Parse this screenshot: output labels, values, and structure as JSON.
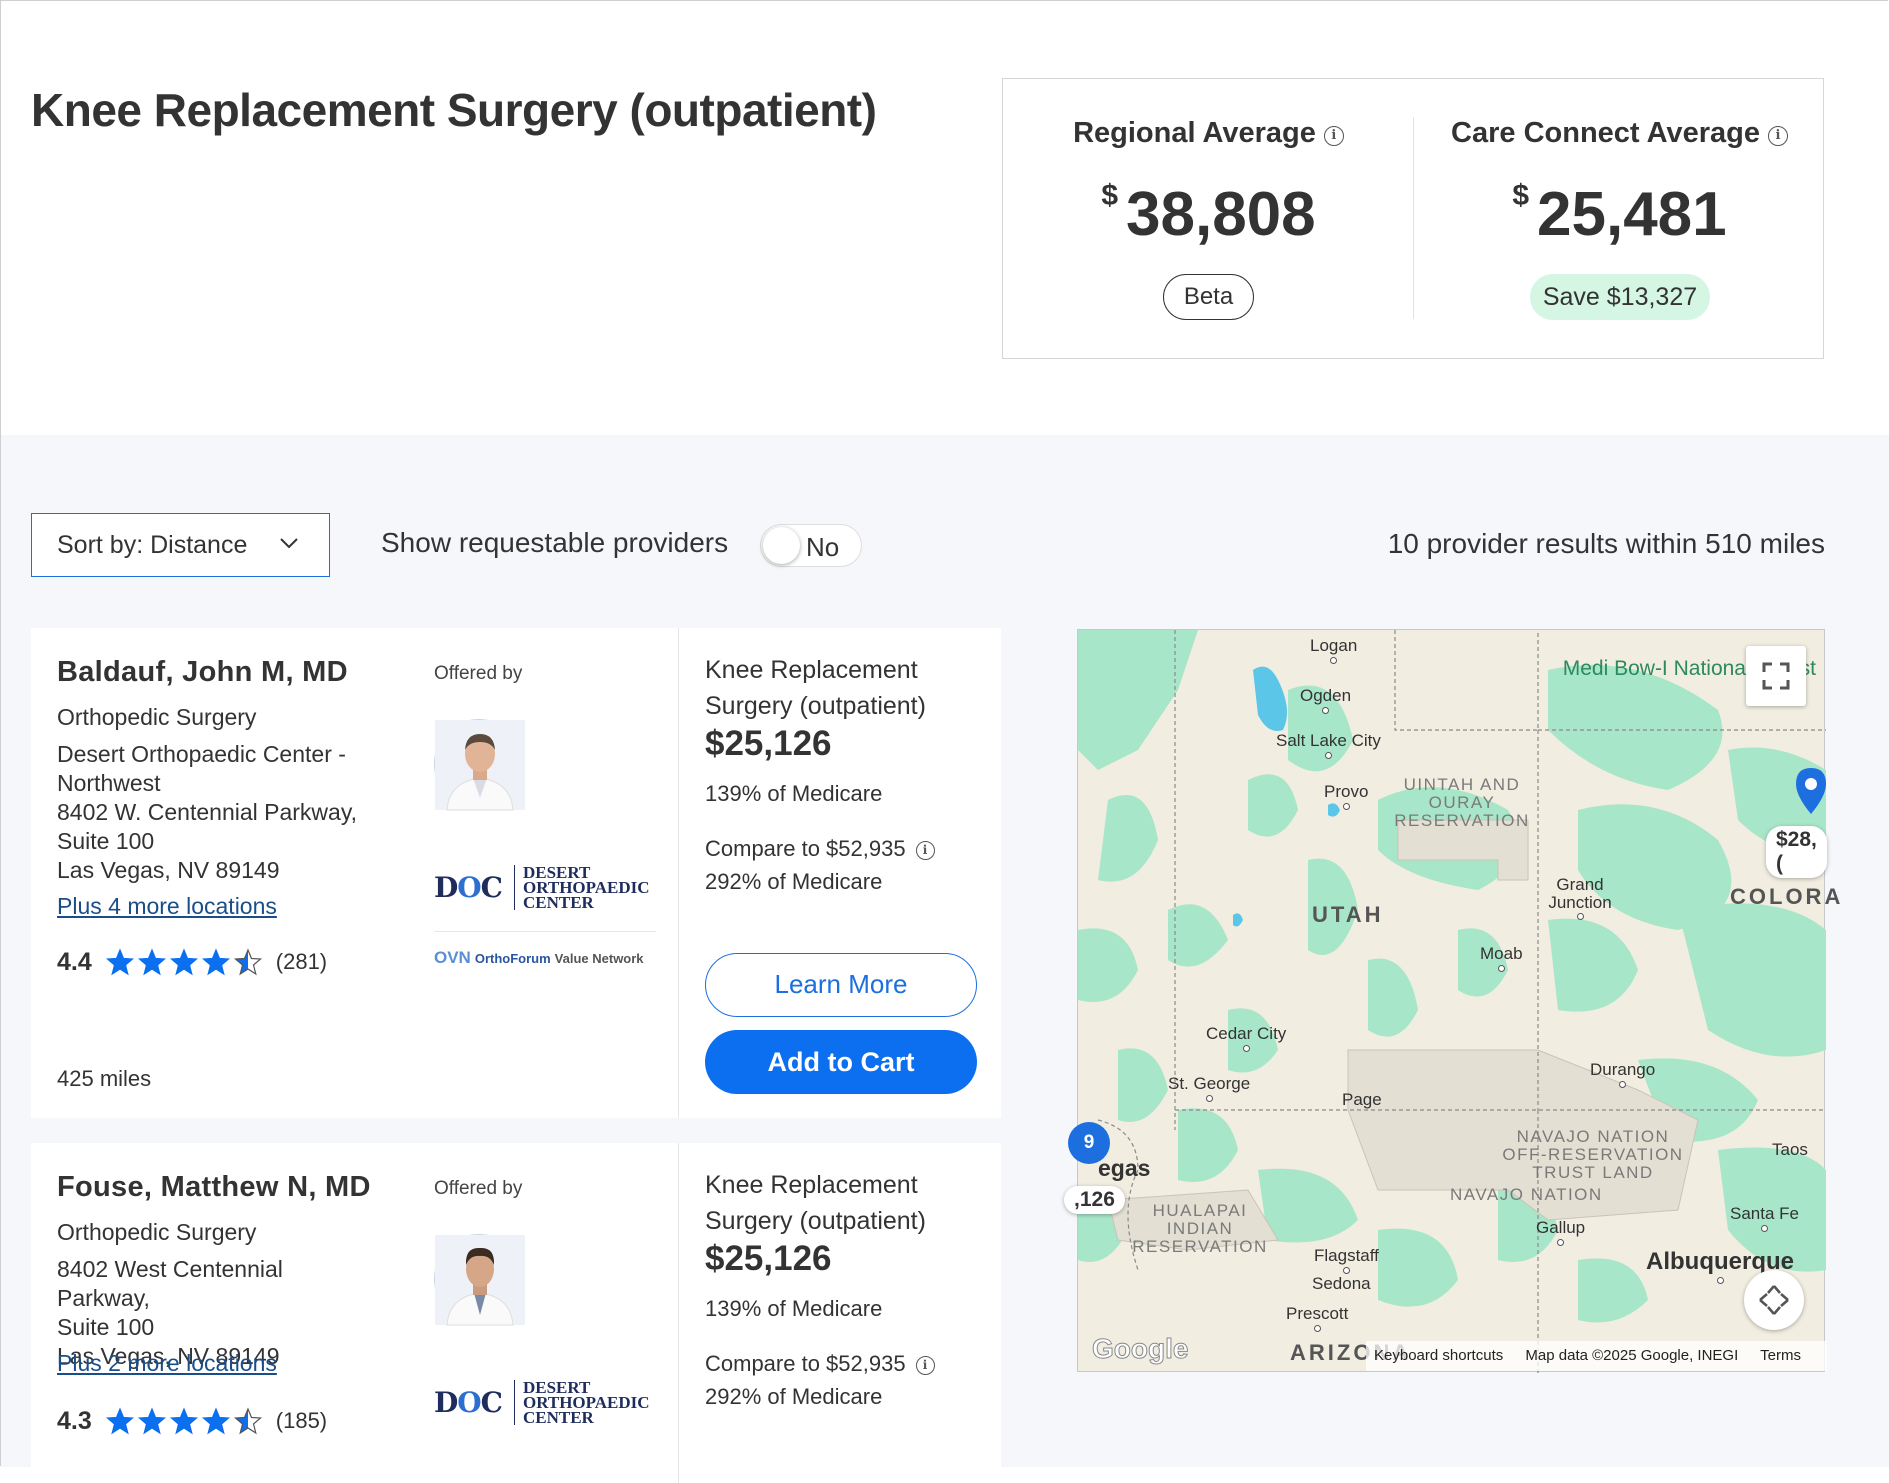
{
  "header": {
    "title": "Knee Replacement Surgery (outpatient)"
  },
  "pricing": {
    "regional": {
      "label": "Regional Average",
      "currency": "$",
      "amount": "38,808",
      "badge": "Beta"
    },
    "care_connect": {
      "label": "Care Connect Average",
      "currency": "$",
      "amount": "25,481",
      "badge": "Save $13,327"
    },
    "info_icon": "i"
  },
  "controls": {
    "sort_label": "Sort by: Distance",
    "toggle_label": "Show requestable providers",
    "toggle_state": "No",
    "results_text": "10 provider results within 510 miles"
  },
  "providers": [
    {
      "name": "Baldauf, John M, MD",
      "specialty": "Orthopedic Surgery",
      "address_lines": [
        "Desert Orthopaedic Center -",
        "Northwest",
        "8402 W. Centennial Parkway,",
        "Suite 100",
        "Las Vegas, NV 89149"
      ],
      "more_locations": "Plus 4 more locations",
      "rating": "4.4",
      "stars": 4.5,
      "reviews": "(281)",
      "distance": "425 miles",
      "offered_by": "Offered by",
      "procedure": "Knee Replacement Surgery (outpatient)",
      "price": "$25,126",
      "medicare": "139% of Medicare",
      "compare": "Compare to $52,935",
      "compare_medicare": "292% of Medicare",
      "learn_more": "Learn More",
      "add_to_cart": "Add to Cart"
    },
    {
      "name": "Fouse, Matthew N, MD",
      "specialty": "Orthopedic Surgery",
      "address_lines": [
        "8402 West Centennial Parkway,",
        "Suite 100",
        "Las Vegas, NV 89149"
      ],
      "more_locations": "Plus 2 more locations",
      "rating": "4.3",
      "stars": 4.5,
      "reviews": "(185)",
      "offered_by": "Offered by",
      "procedure": "Knee Replacement Surgery (outpatient)",
      "price": "$25,126",
      "medicare": "139% of Medicare",
      "compare": "Compare to $52,935",
      "compare_medicare": "292% of Medicare"
    }
  ],
  "logos": {
    "doc_letters_a": "D",
    "doc_letters_o": "O",
    "doc_letters_c": "C",
    "doc_name_1": "DESERT",
    "doc_name_2": "ORTHOPAEDIC",
    "doc_name_3": "CENTER",
    "ofvn_mark": "OVN",
    "ofvn_name": "OrthoForum",
    "ofvn_suffix": "Value Network"
  },
  "map": {
    "cities": {
      "logan": "Logan",
      "ogden": "Ogden",
      "slc": "Salt Lake City",
      "provo": "Provo",
      "grand_junction": "Grand Junction",
      "moab": "Moab",
      "cedar_city": "Cedar City",
      "st_george": "St. George",
      "page": "Page",
      "durango": "Durango",
      "taos": "Taos",
      "santa_fe": "Santa Fe",
      "gallup": "Gallup",
      "flagstaff": "Flagstaff",
      "sedona": "Sedona",
      "prescott": "Prescott",
      "albuquerque": "Albuquerque",
      "vegas_partial": "egas"
    },
    "regions": {
      "uintah": "UINTAH AND OURAY RESERVATION",
      "navajo_off": "NAVAJO NATION OFF-RESERVATION TRUST LAND",
      "navajo": "NAVAJO NATION",
      "hualapai": "HUALAPAI INDIAN RESERVATION"
    },
    "states": {
      "utah": "UTAH",
      "colorado": "COLORA",
      "arizona": "ARIZONA"
    },
    "forest": "Medi Bow-I National Forest",
    "price_tag_right": "$28,(",
    "price_tag_left": ",126",
    "cluster_count": "9",
    "google": "Google",
    "keyboard": "Keyboard shortcuts",
    "map_data": "Map data ©2025 Google, INEGI",
    "terms": "Terms",
    "colors": {
      "land": "#f1ede1",
      "forest": "#9fe3c4",
      "water": "#5cc6e8",
      "pin": "#1d6fe0"
    }
  }
}
